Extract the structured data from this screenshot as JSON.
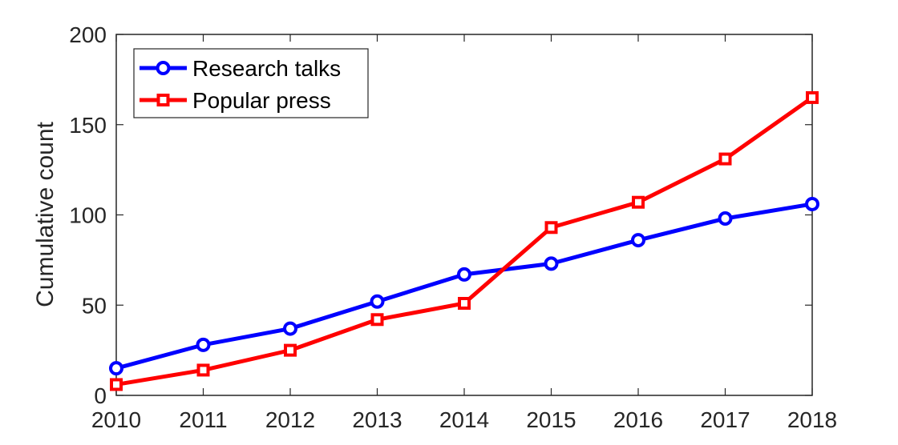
{
  "chart_data": {
    "type": "line",
    "x": [
      2010,
      2011,
      2012,
      2013,
      2014,
      2015,
      2016,
      2017,
      2018
    ],
    "series": [
      {
        "name": "Research talks",
        "values": [
          15,
          28,
          37,
          52,
          67,
          73,
          86,
          98,
          106
        ],
        "color": "#0000ff",
        "marker": "circle"
      },
      {
        "name": "Popular press",
        "values": [
          6,
          14,
          25,
          42,
          51,
          93,
          107,
          131,
          165
        ],
        "color": "#ff0000",
        "marker": "square"
      }
    ],
    "xlabel": "",
    "ylabel": "Cumulative count",
    "xlim": [
      2010,
      2018
    ],
    "ylim": [
      0,
      200
    ],
    "xticks": [
      "2010",
      "2011",
      "2012",
      "2013",
      "2014",
      "2015",
      "2016",
      "2017",
      "2018"
    ],
    "yticks": [
      "0",
      "50",
      "100",
      "150",
      "200"
    ],
    "grid": false,
    "legend_position": "top-left"
  }
}
